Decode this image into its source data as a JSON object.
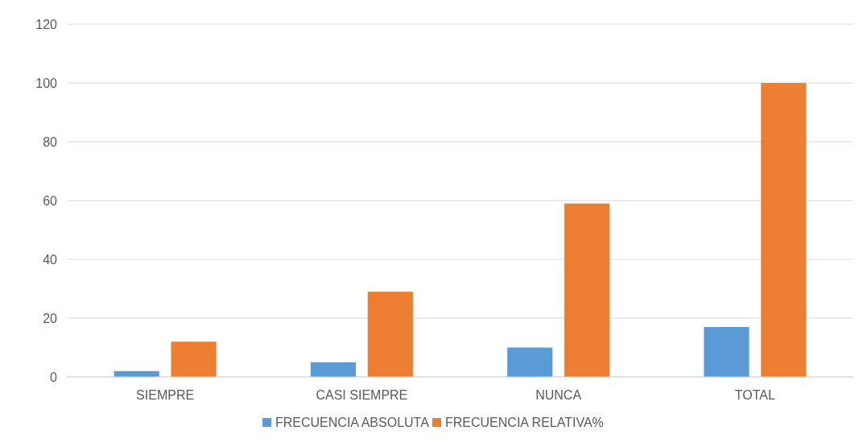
{
  "chart_data": {
    "type": "bar",
    "categories": [
      "SIEMPRE",
      "CASI SIEMPRE",
      "NUNCA",
      "TOTAL"
    ],
    "series": [
      {
        "name": "FRECUENCIA ABSOLUTA",
        "color": "#5b9bd5",
        "values": [
          2,
          5,
          10,
          17
        ]
      },
      {
        "name": "FRECUENCIA RELATIVA%",
        "color": "#ed7d31",
        "values": [
          12,
          29,
          59,
          100
        ]
      }
    ],
    "ylim": [
      0,
      120
    ],
    "yticks": [
      0,
      20,
      40,
      60,
      80,
      100,
      120
    ],
    "grid": "y",
    "legend": "bottom"
  }
}
